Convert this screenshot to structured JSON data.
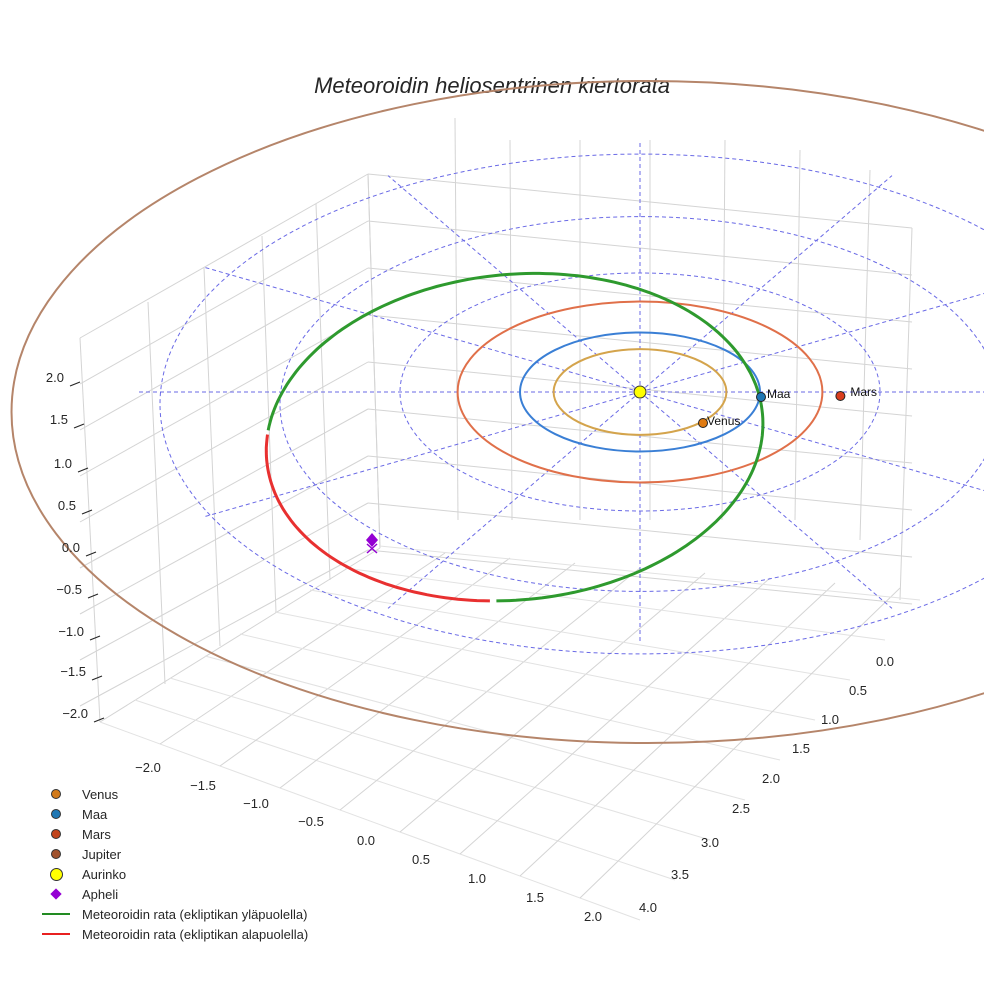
{
  "title": "Meteoroidin heliosentrinen kiertorata",
  "chart_data": {
    "type": "3d-line",
    "title": "Meteoroidin heliosentrinen kiertorata",
    "x_ticks": [
      "−2.0",
      "−1.5",
      "−1.0",
      "−0.5",
      "0.0",
      "0.5",
      "1.0",
      "1.5",
      "2.0"
    ],
    "y_ticks": [
      "0.0",
      "0.5",
      "1.0",
      "1.5",
      "2.0",
      "2.5",
      "3.0",
      "3.5",
      "4.0"
    ],
    "z_ticks": [
      "2.0",
      "1.5",
      "1.0",
      "0.5",
      "0.0",
      "−0.5",
      "−1.0",
      "−1.5",
      "−2.0"
    ],
    "x_ticks_values": [
      -2.0,
      -1.5,
      -1.0,
      -0.5,
      0.0,
      0.5,
      1.0,
      1.5,
      2.0
    ],
    "y_ticks_values": [
      0.0,
      0.5,
      1.0,
      1.5,
      2.0,
      2.5,
      3.0,
      3.5,
      4.0
    ],
    "z_ticks_values": [
      2.0,
      1.5,
      1.0,
      0.5,
      0.0,
      -0.5,
      -1.0,
      -1.5,
      -2.0
    ],
    "xlim": [
      -2.2,
      2.2
    ],
    "ylim": [
      -0.3,
      4.2
    ],
    "zlim": [
      -2.2,
      2.2
    ],
    "planets": [
      {
        "name": "Venus",
        "label": "Venus",
        "radius_au": 0.72,
        "color": "#d4a44c",
        "marker_color": "#e07b12",
        "angle_deg": -60
      },
      {
        "name": "Maa",
        "label": "Maa",
        "radius_au": 1.0,
        "color": "#3a7fd5",
        "marker_color": "#1f77b4",
        "angle_deg": 0
      },
      {
        "name": "Mars",
        "label": "Mars",
        "radius_au": 1.52,
        "color": "#e0704a",
        "marker_color": "#d93d1f",
        "angle_deg": 0
      },
      {
        "name": "Jupiter",
        "label": "Jupiter",
        "radius_au": 5.2,
        "color": "#b5856a",
        "marker_color": "#a0522d"
      }
    ],
    "ecliptic_grid": {
      "circles_au": [
        1,
        2,
        3,
        4
      ],
      "spokes": 12,
      "color": "#6a6ae6"
    },
    "meteoroid_orbit": {
      "semi_major_au": 2.05,
      "eccentricity": 0.52,
      "perihelion_angle_deg": 0,
      "color_above": "#2e9a2e",
      "color_below": "#e83030",
      "above_label": "Meteoroidin rata (ekliptikan yläpuolella)",
      "below_label": "Meteoroidin rata (ekliptikan alapuolella)"
    },
    "aphelion": {
      "label": "Apheli",
      "color": "#9400d3"
    },
    "sun": {
      "label": "Aurinko",
      "color": "#ffff00"
    }
  },
  "legend": [
    {
      "label": "Venus",
      "kind": "dot",
      "color": "#d27a1a"
    },
    {
      "label": "Maa",
      "kind": "dot",
      "color": "#1f77b4"
    },
    {
      "label": "Mars",
      "kind": "dot",
      "color": "#c1441d"
    },
    {
      "label": "Jupiter",
      "kind": "dot",
      "color": "#a0522d"
    },
    {
      "label": "Aurinko",
      "kind": "sun",
      "color": "#ffff00"
    },
    {
      "label": "Apheli",
      "kind": "diamond",
      "color": "#9400d3"
    },
    {
      "label": "Meteoroidin rata (ekliptikan yläpuolella)",
      "kind": "line",
      "color": "#228b22"
    },
    {
      "label": "Meteoroidin rata (ekliptikan alapuolella)",
      "kind": "line",
      "color": "#e82020"
    }
  ]
}
